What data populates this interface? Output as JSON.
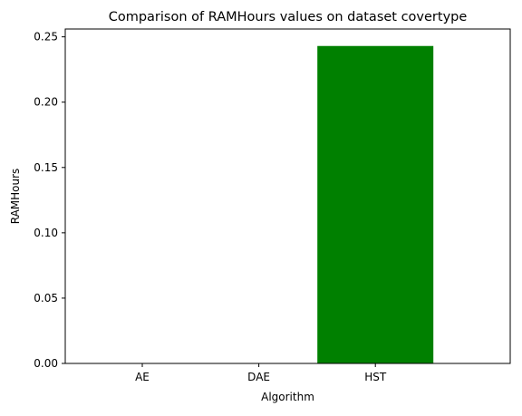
{
  "chart_data": {
    "type": "bar",
    "title": "Comparison of RAMHours values on dataset covertype",
    "xlabel": "Algorithm",
    "ylabel": "RAMHours",
    "categories": [
      "AE",
      "DAE",
      "HST"
    ],
    "values": [
      0.0,
      0.0,
      0.243
    ],
    "bar_colors": [
      "#008000",
      "#008000",
      "#008000"
    ],
    "ylim": [
      0,
      0.256
    ],
    "yticks": [
      0.0,
      0.05,
      0.1,
      0.15,
      0.2,
      0.25
    ],
    "ytick_labels": [
      "0.00",
      "0.05",
      "0.10",
      "0.15",
      "0.20",
      "0.25"
    ],
    "grid": false,
    "legend": "none"
  }
}
